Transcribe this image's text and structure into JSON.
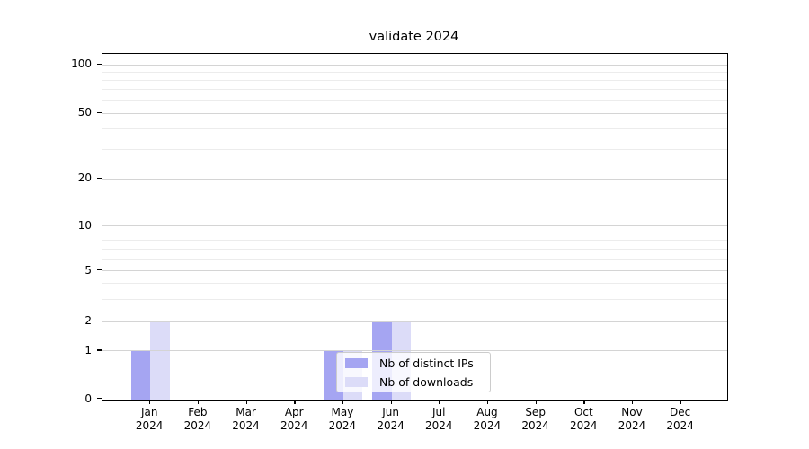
{
  "chart_data": {
    "type": "bar",
    "title": "validate 2024",
    "categories": [
      "Jan",
      "Feb",
      "Mar",
      "Apr",
      "May",
      "Jun",
      "Jul",
      "Aug",
      "Sep",
      "Oct",
      "Nov",
      "Dec"
    ],
    "category_year": "2024",
    "series": [
      {
        "name": "Nb of distinct IPs",
        "color": "#a5a5f2",
        "values": [
          1,
          0,
          0,
          0,
          1,
          2,
          0,
          0,
          0,
          0,
          0,
          0
        ]
      },
      {
        "name": "Nb of downloads",
        "color": "#dcdcf8",
        "values": [
          2,
          0,
          0,
          0,
          1,
          2,
          0,
          0,
          0,
          0,
          0,
          0
        ]
      }
    ],
    "xlabel": "",
    "ylabel": "",
    "y_axis": {
      "scale": "symlog",
      "ticks": [
        0,
        1,
        2,
        5,
        10,
        20,
        50,
        100
      ],
      "minor_ticks": [
        3,
        4,
        6,
        7,
        8,
        9,
        30,
        40,
        60,
        70,
        80,
        90
      ],
      "ylim": [
        0,
        118
      ]
    },
    "grid": {
      "major": true,
      "minor": true
    },
    "legend": {
      "position": "lower-center",
      "entries": [
        "Nb of distinct IPs",
        "Nb of downloads"
      ]
    }
  },
  "colors": {
    "bar_distinct_ips": "#a5a5f2",
    "bar_downloads": "#dcdcf8",
    "grid_major": "#d4d4d4",
    "grid_minor": "#ececec",
    "axis": "#000000",
    "legend_border": "#cccccc",
    "background": "#ffffff"
  }
}
